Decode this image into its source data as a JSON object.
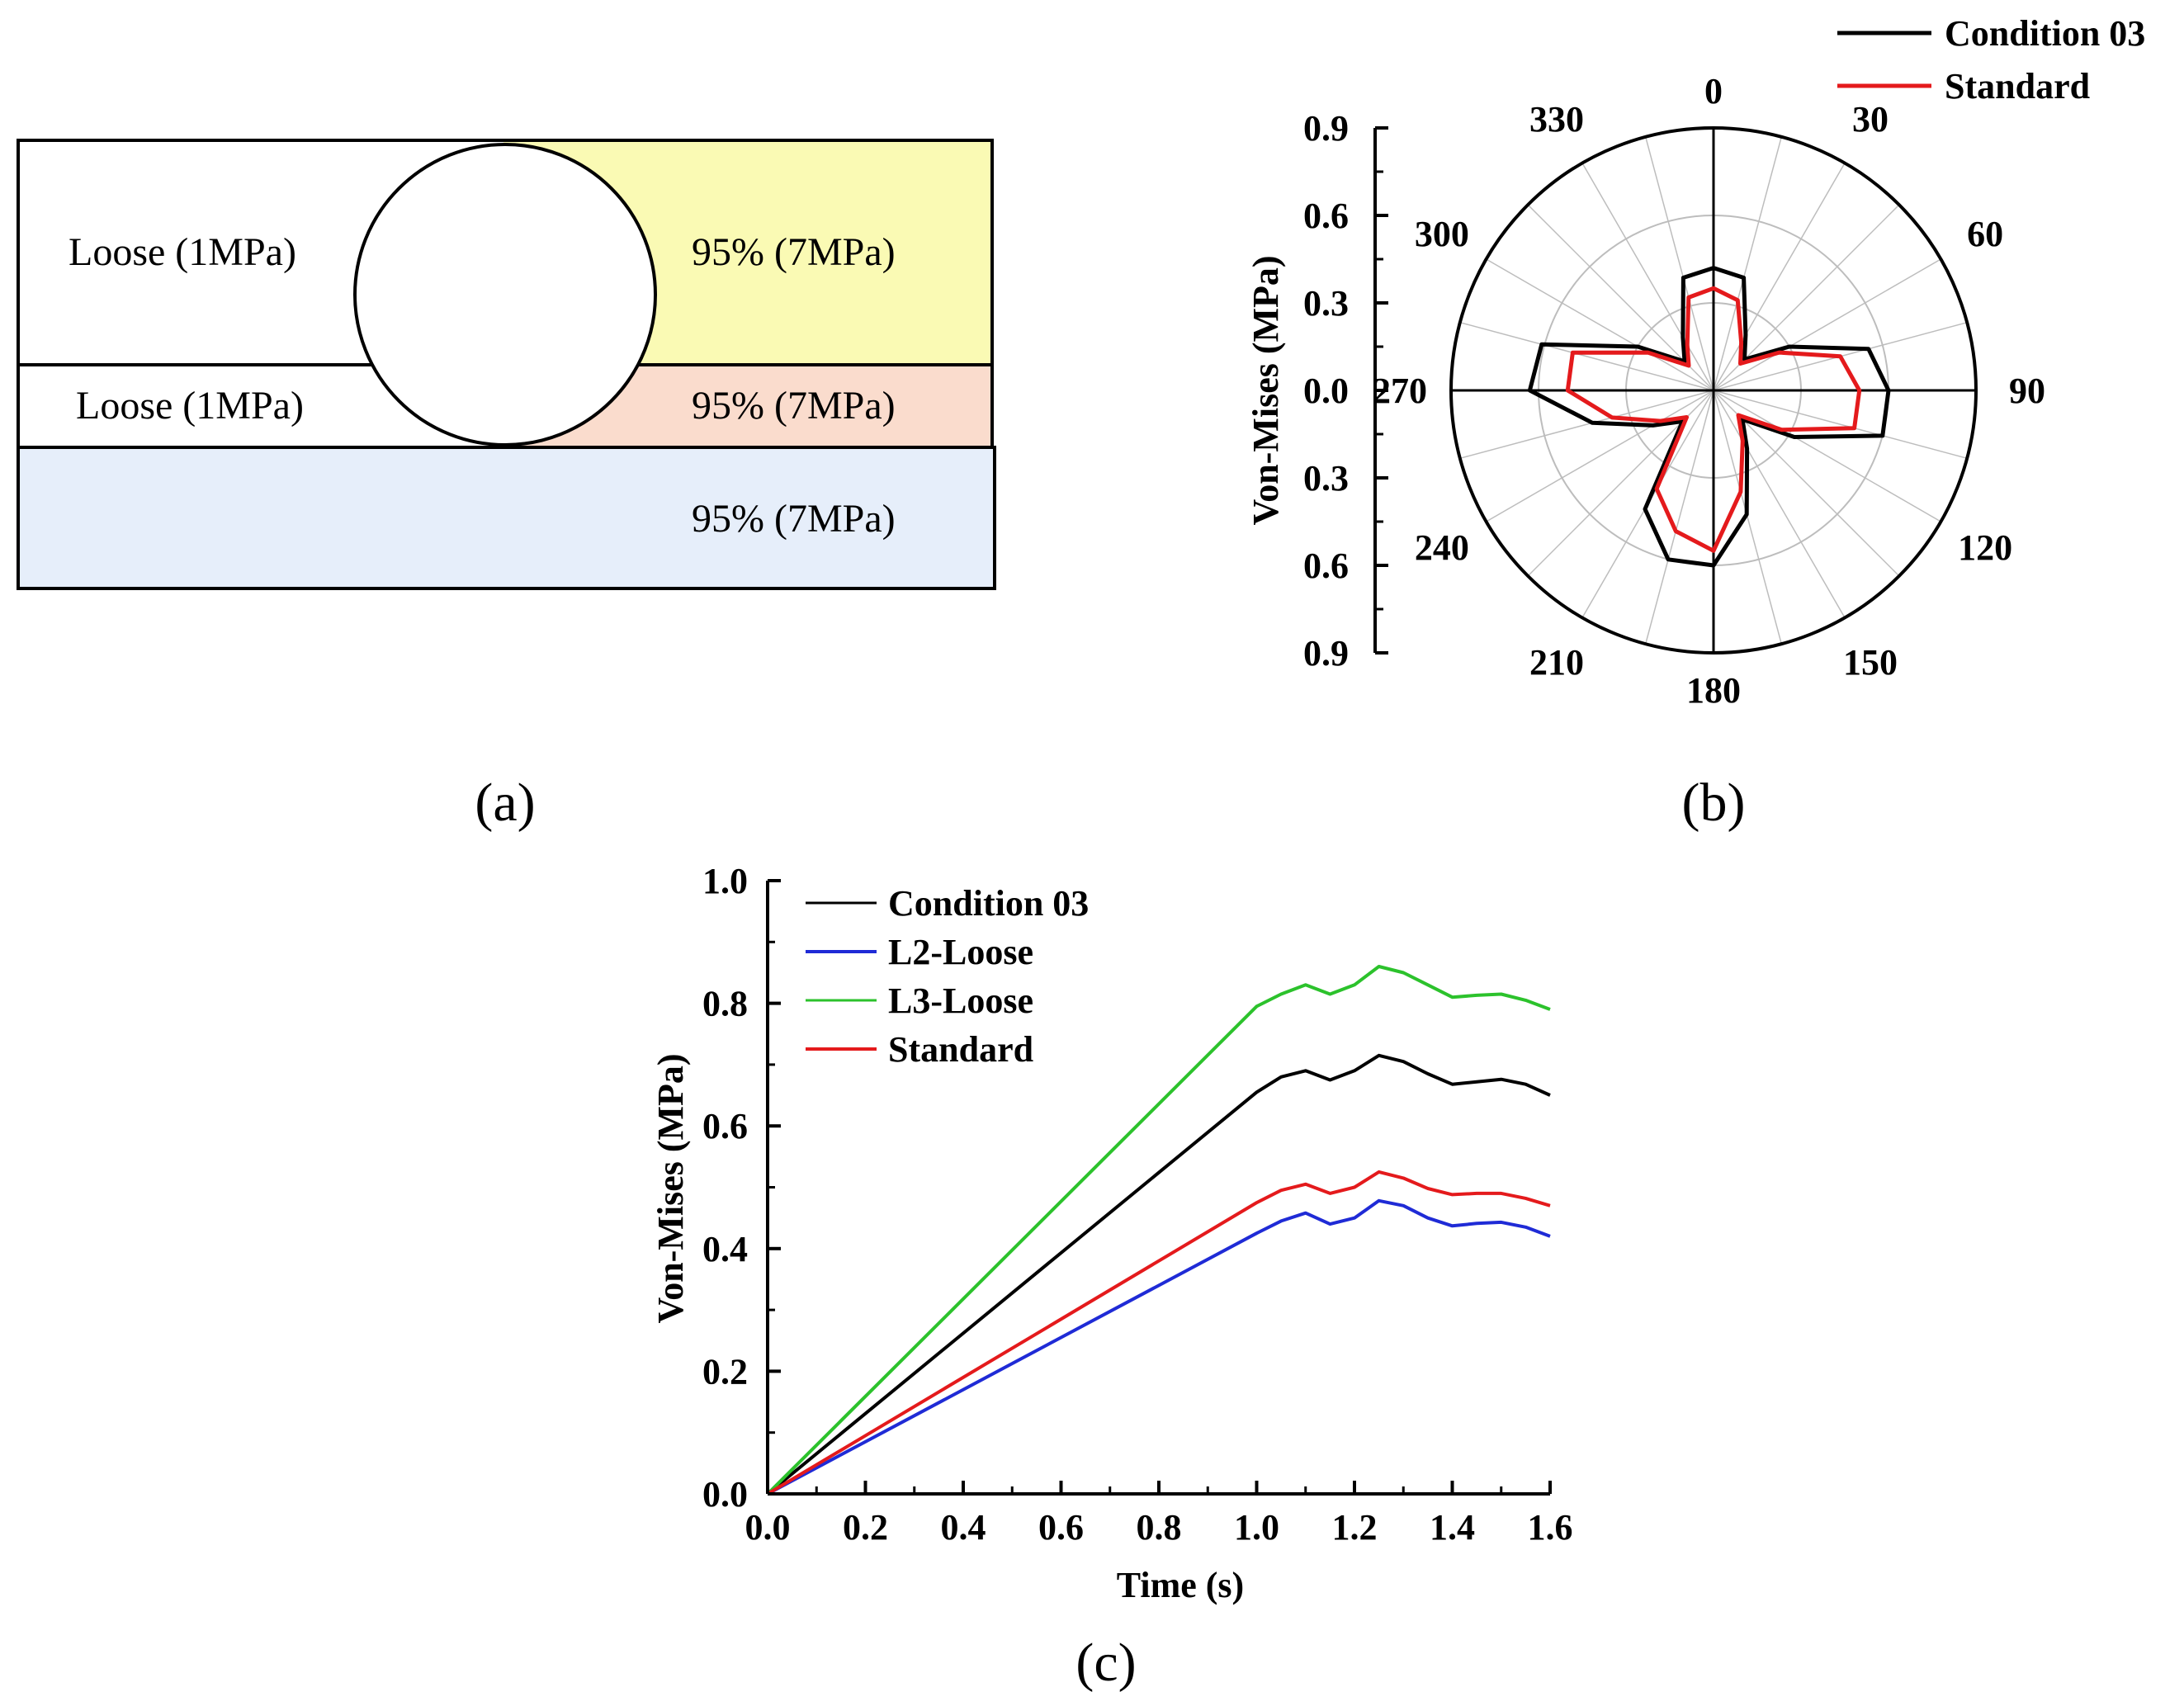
{
  "panel_labels": {
    "a": "(a)",
    "b": "(b)",
    "c": "(c)"
  },
  "colors": {
    "yellow_region": "#fafab4",
    "salmon_region": "#fadccd",
    "blue_region": "#e6eefa",
    "black": "#000000",
    "red": "#e41a1c",
    "blue": "#1f2bd6",
    "green": "#2cc22c",
    "grid": "#bdbdbd"
  },
  "diagram": {
    "upper_left_label": "Loose (1MPa)",
    "upper_right_label": "95% (7MPa)",
    "middle_left_label": "Loose (1MPa)",
    "middle_right_label": "95% (7MPa)",
    "bottom_label": "95% (7MPa)"
  },
  "chart_data": [
    {
      "type": "polar_line",
      "panel": "b",
      "ylabel": "Von-Mises (MPa)",
      "radial_range": [
        0,
        0.9
      ],
      "radial_ticks_upper": [
        "0.9",
        "0.6",
        "0.3",
        "0.0"
      ],
      "radial_ticks_lower": [
        "0.3",
        "0.6",
        "0.9"
      ],
      "angle_labels": [
        "0",
        "30",
        "60",
        "90",
        "120",
        "150",
        "180",
        "210",
        "240",
        "270",
        "300",
        "330"
      ],
      "angle_step_deg": 15,
      "legend": [
        "Condition 03",
        "Standard"
      ],
      "series": [
        {
          "name": "Condition 03",
          "color": "#000000",
          "values": [
            0.42,
            0.4,
            0.22,
            0.15,
            0.3,
            0.55,
            0.6,
            0.6,
            0.32,
            0.14,
            0.23,
            0.44,
            0.6,
            0.6,
            0.47,
            0.15,
            0.24,
            0.43,
            0.63,
            0.61,
            0.3,
            0.14,
            0.21,
            0.4
          ]
        },
        {
          "name": "Standard",
          "color": "#e41a1c",
          "values": [
            0.35,
            0.32,
            0.19,
            0.13,
            0.26,
            0.45,
            0.5,
            0.5,
            0.27,
            0.12,
            0.2,
            0.36,
            0.55,
            0.5,
            0.39,
            0.13,
            0.21,
            0.36,
            0.5,
            0.5,
            0.26,
            0.12,
            0.18,
            0.33
          ]
        }
      ]
    },
    {
      "type": "line",
      "panel": "c",
      "xlabel": "Time (s)",
      "ylabel": "Von-Mises (MPa)",
      "xlim": [
        0,
        1.6
      ],
      "ylim": [
        0,
        1.0
      ],
      "xticks": [
        "0.0",
        "0.2",
        "0.4",
        "0.6",
        "0.8",
        "1.0",
        "1.2",
        "1.4",
        "1.6"
      ],
      "yticks": [
        "0.0",
        "0.2",
        "0.4",
        "0.6",
        "0.8",
        "1.0"
      ],
      "legend": [
        "Condition 03",
        "L2-Loose",
        "L3-Loose",
        "Standard"
      ],
      "x": [
        0,
        1.0,
        1.05,
        1.1,
        1.15,
        1.2,
        1.25,
        1.3,
        1.35,
        1.4,
        1.45,
        1.5,
        1.55,
        1.6
      ],
      "series": [
        {
          "name": "Condition 03",
          "color": "#000000",
          "values": [
            0,
            0.655,
            0.68,
            0.69,
            0.675,
            0.69,
            0.715,
            0.705,
            0.685,
            0.668,
            0.672,
            0.676,
            0.668,
            0.65
          ]
        },
        {
          "name": "L2-Loose",
          "color": "#1f2bd6",
          "values": [
            0,
            0.425,
            0.445,
            0.458,
            0.44,
            0.45,
            0.478,
            0.47,
            0.45,
            0.437,
            0.441,
            0.443,
            0.435,
            0.42
          ]
        },
        {
          "name": "L3-Loose",
          "color": "#2cc22c",
          "values": [
            0,
            0.795,
            0.815,
            0.83,
            0.815,
            0.83,
            0.86,
            0.85,
            0.83,
            0.81,
            0.813,
            0.815,
            0.805,
            0.79
          ]
        },
        {
          "name": "Standard",
          "color": "#e41a1c",
          "values": [
            0,
            0.475,
            0.495,
            0.505,
            0.49,
            0.5,
            0.525,
            0.515,
            0.498,
            0.488,
            0.49,
            0.49,
            0.482,
            0.47
          ]
        }
      ]
    }
  ]
}
